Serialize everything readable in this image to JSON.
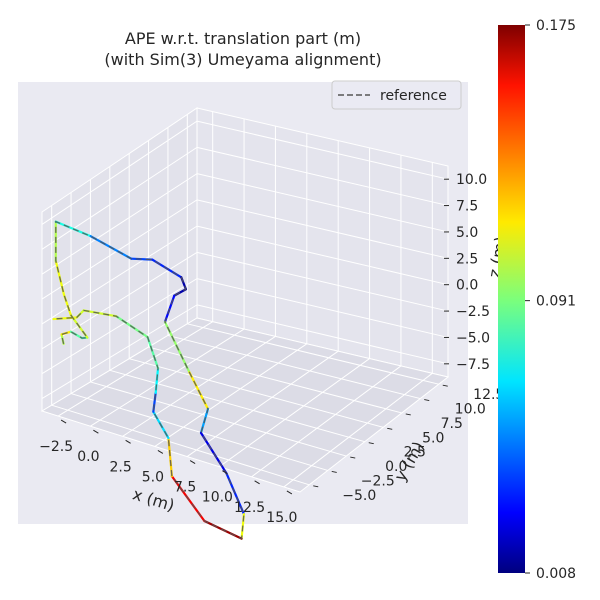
{
  "chart_data": {
    "type": "line",
    "projection": "3d",
    "title_line1": "APE w.r.t. translation part (m)",
    "title_line2": "(with Sim(3) Umeyama alignment)",
    "xlabel": "x (m)",
    "ylabel": "y (m)",
    "zlabel": "z (m)",
    "x_ticks": [
      "−2.5",
      "0.0",
      "2.5",
      "5.0",
      "7.5",
      "10.0",
      "12.5",
      "15.0"
    ],
    "y_ticks": [
      "−5.0",
      "−2.5",
      "0.0",
      "2.5",
      "5.0",
      "7.5",
      "10.0",
      "12.5"
    ],
    "z_ticks": [
      "−7.5",
      "−5.0",
      "−2.5",
      "0.0",
      "2.5",
      "5.0",
      "7.5",
      "10.0"
    ],
    "legend": {
      "label": "reference",
      "placement": "top-right",
      "style": "dashed"
    },
    "colorbar": {
      "colormap": "jet",
      "min": 0.008,
      "max": 0.175,
      "ticks": [
        "0.008",
        "0.091",
        "0.175"
      ],
      "tick_values": [
        0.008,
        0.091,
        0.175
      ]
    },
    "grid": true,
    "trajectory": [
      {
        "x": -2.0,
        "y": 3.8,
        "z": 1.5,
        "error": 0.07
      },
      {
        "x": -1.5,
        "y": 5.5,
        "z": 1.6,
        "error": 0.13
      },
      {
        "x": -0.5,
        "y": 6.0,
        "z": 2.0,
        "error": 0.1
      },
      {
        "x": 0.3,
        "y": 5.6,
        "z": 2.0,
        "error": 0.07
      },
      {
        "x": 1.0,
        "y": 6.2,
        "z": 2.0,
        "error": 0.09
      },
      {
        "x": 0.5,
        "y": 8.5,
        "z": 2.5,
        "error": 0.12
      },
      {
        "x": 0.5,
        "y": 10.0,
        "z": 3.5,
        "error": 0.1
      },
      {
        "x": 0.0,
        "y": 10.5,
        "z": 6.0,
        "error": 0.12
      },
      {
        "x": 0.0,
        "y": 10.5,
        "z": 9.5,
        "error": 0.08
      },
      {
        "x": 3.0,
        "y": 10.5,
        "z": 9.5,
        "error": 0.07
      },
      {
        "x": 6.5,
        "y": 10.5,
        "z": 9.0,
        "error": 0.03
      },
      {
        "x": 8.5,
        "y": 11.0,
        "z": 9.5,
        "error": 0.05
      },
      {
        "x": 11.0,
        "y": 11.0,
        "z": 9.0,
        "error": 0.02
      },
      {
        "x": 11.0,
        "y": 10.0,
        "z": 8.5,
        "error": 0.01
      },
      {
        "x": 10.0,
        "y": 10.0,
        "z": 7.5,
        "error": 0.02
      },
      {
        "x": 9.0,
        "y": 9.5,
        "z": 5.0,
        "error": 0.04
      },
      {
        "x": 10.5,
        "y": 8.0,
        "z": 2.0,
        "error": 0.15
      },
      {
        "x": 11.5,
        "y": 6.5,
        "z": 0.0,
        "error": 0.08
      },
      {
        "x": 10.5,
        "y": 5.5,
        "z": -2.0,
        "error": 0.03
      },
      {
        "x": 11.5,
        "y": 2.5,
        "z": -3.5,
        "error": 0.02
      },
      {
        "x": 12.0,
        "y": 0.0,
        "z": -5.5,
        "error": 0.05
      },
      {
        "x": 11.0,
        "y": -2.0,
        "z": -7.0,
        "error": 0.17
      },
      {
        "x": 8.0,
        "y": -1.5,
        "z": -7.0,
        "error": 0.17
      },
      {
        "x": 6.0,
        "y": 0.5,
        "z": -5.0,
        "error": 0.14
      },
      {
        "x": 6.5,
        "y": 2.5,
        "z": -2.5,
        "error": 0.1
      },
      {
        "x": 6.0,
        "y": 4.5,
        "z": -1.5,
        "error": 0.03
      },
      {
        "x": 7.0,
        "y": 6.5,
        "z": -0.5,
        "error": 0.05
      },
      {
        "x": 8.0,
        "y": 8.5,
        "z": 1.0,
        "error": 0.09
      },
      {
        "x": 7.5,
        "y": 9.5,
        "z": 3.0,
        "error": 0.08
      },
      {
        "x": 5.0,
        "y": 10.0,
        "z": 3.5,
        "error": 0.1
      },
      {
        "x": 2.0,
        "y": 9.5,
        "z": 3.0,
        "error": 0.11
      },
      {
        "x": 1.0,
        "y": 8.5,
        "z": 2.5,
        "error": 0.1
      },
      {
        "x": -1.0,
        "y": 8.5,
        "z": 1.5,
        "error": 0.12
      }
    ]
  }
}
